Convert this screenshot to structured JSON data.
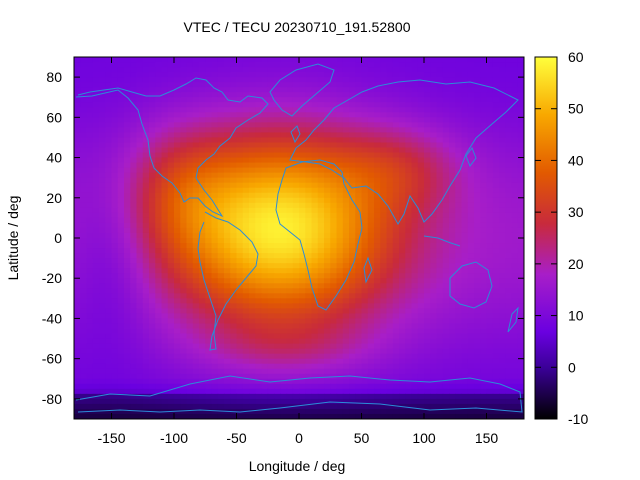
{
  "chart_data": {
    "type": "heatmap",
    "title": "VTEC / TECU 20230710_191.52800",
    "xlabel": "Longitude / deg",
    "ylabel": "Latitude / deg",
    "xlim": [
      -180,
      180
    ],
    "ylim": [
      -90,
      90
    ],
    "x_ticks": [
      -150,
      -100,
      -50,
      0,
      50,
      100,
      150
    ],
    "y_ticks": [
      -80,
      -60,
      -40,
      -20,
      0,
      20,
      40,
      60,
      80
    ],
    "colorbar": {
      "range": [
        -10,
        60
      ],
      "ticks": [
        -10,
        0,
        10,
        20,
        30,
        40,
        50,
        60
      ],
      "palette": [
        "#000000",
        "#5a00b4",
        "#9a1ed6",
        "#c8282a",
        "#ee6a00",
        "#ffc400",
        "#ffff3c"
      ]
    },
    "peak": {
      "lon": -15,
      "lat": 5,
      "value": 58
    },
    "background_value": 16,
    "grid": false,
    "overlay": "coastlines",
    "overlay_color": "#2b8cd8"
  }
}
